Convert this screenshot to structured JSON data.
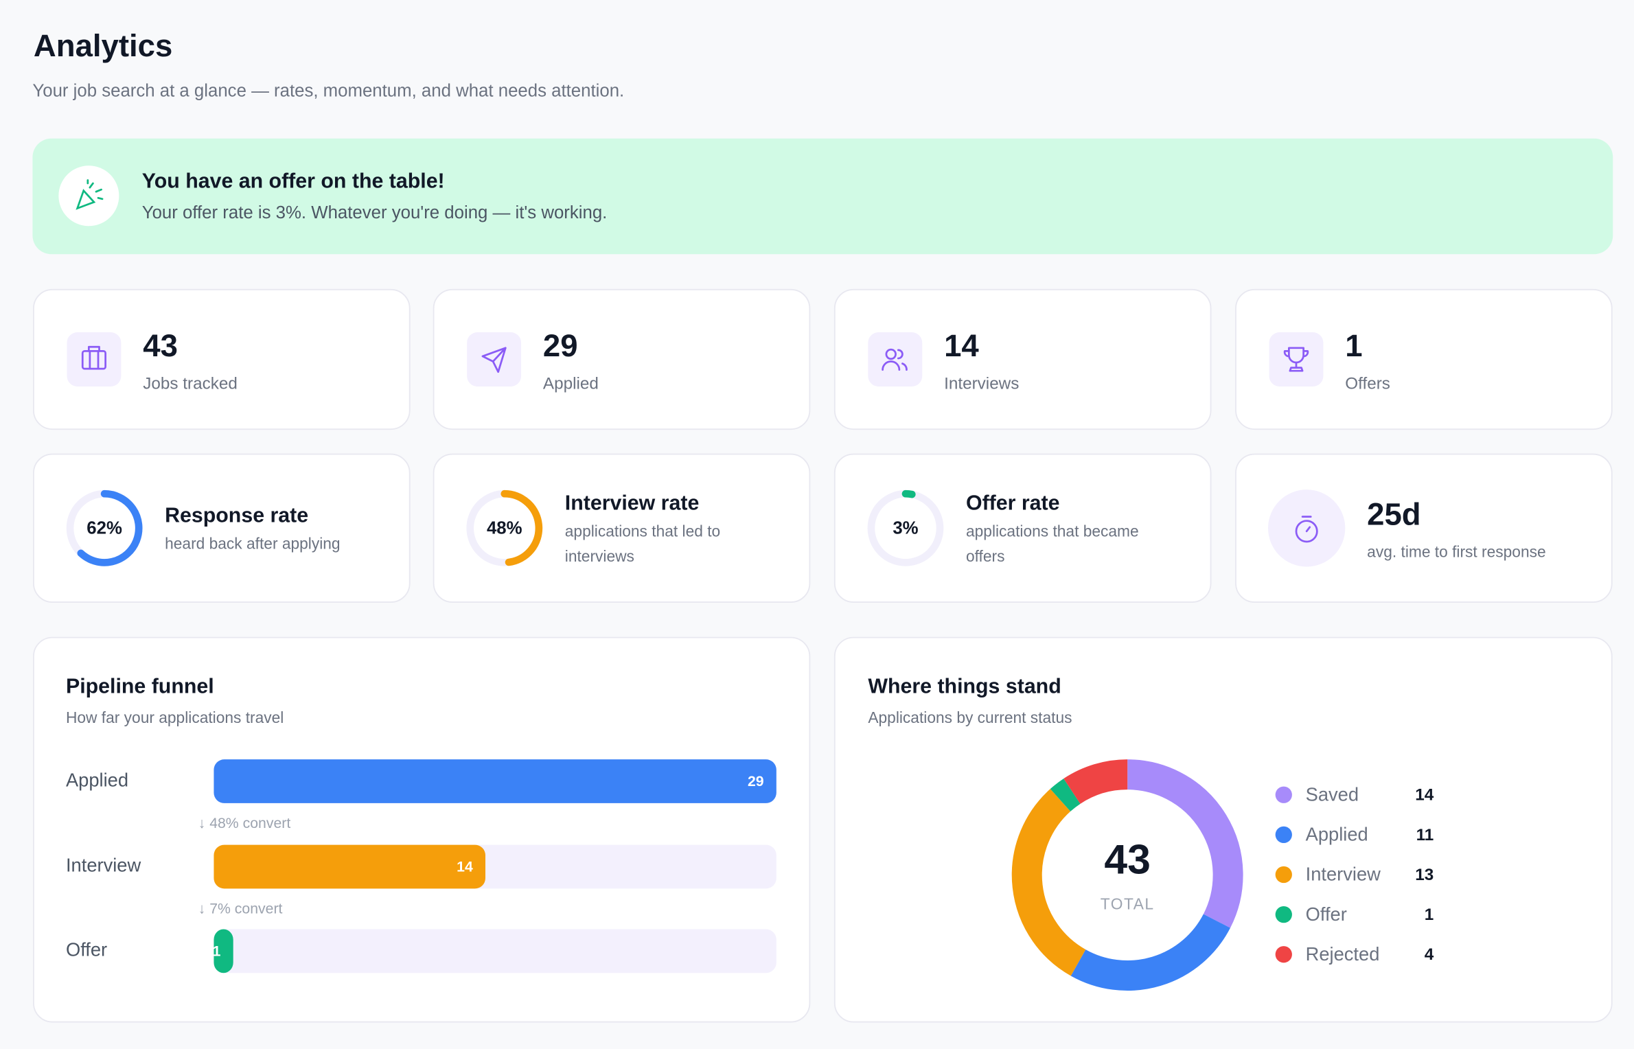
{
  "header": {
    "title": "Analytics",
    "subtitle": "Your job search at a glance — rates, momentum, and what needs attention."
  },
  "banner": {
    "title": "You have an offer on the table!",
    "text": "Your offer rate is 3%. Whatever you're doing — it's working."
  },
  "stats": [
    {
      "value": 43,
      "label": "Jobs tracked"
    },
    {
      "value": 29,
      "label": "Applied"
    },
    {
      "value": 14,
      "label": "Interviews"
    },
    {
      "value": 1,
      "label": "Offers"
    }
  ],
  "rates": [
    {
      "value": 62,
      "value_label": "62%",
      "title": "Response rate",
      "text": "heard back after applying",
      "color": "#3b82f6"
    },
    {
      "value": 48,
      "value_label": "48%",
      "title": "Interview rate",
      "text": "applications that led to interviews",
      "color": "#f59e0b"
    },
    {
      "value": 3,
      "value_label": "3%",
      "title": "Offer rate",
      "text": "applications that became offers",
      "color": "#10b981"
    }
  ],
  "response_time": {
    "value_label": "25d",
    "text": "avg. time to first response"
  },
  "funnel": {
    "type": "bar",
    "title": "Pipeline funnel",
    "subtitle": "How far your applications travel",
    "categories": [
      "Applied",
      "Interview",
      "Offer"
    ],
    "values": [
      29,
      14,
      1
    ],
    "colors": [
      "#3b82f6",
      "#f59e0b",
      "#10b981"
    ],
    "xlim": [
      0,
      29
    ],
    "conversions": [
      "↓ 48% convert",
      "↓ 7% convert"
    ]
  },
  "status": {
    "type": "pie",
    "title": "Where things stand",
    "subtitle": "Applications by current status",
    "categories": [
      "Saved",
      "Applied",
      "Interview",
      "Offer",
      "Rejected"
    ],
    "values": [
      14,
      11,
      13,
      1,
      4
    ],
    "colors": [
      "#a78bfa",
      "#3b82f6",
      "#f59e0b",
      "#10b981",
      "#ef4444"
    ],
    "total": 43,
    "total_label": "TOTAL"
  }
}
